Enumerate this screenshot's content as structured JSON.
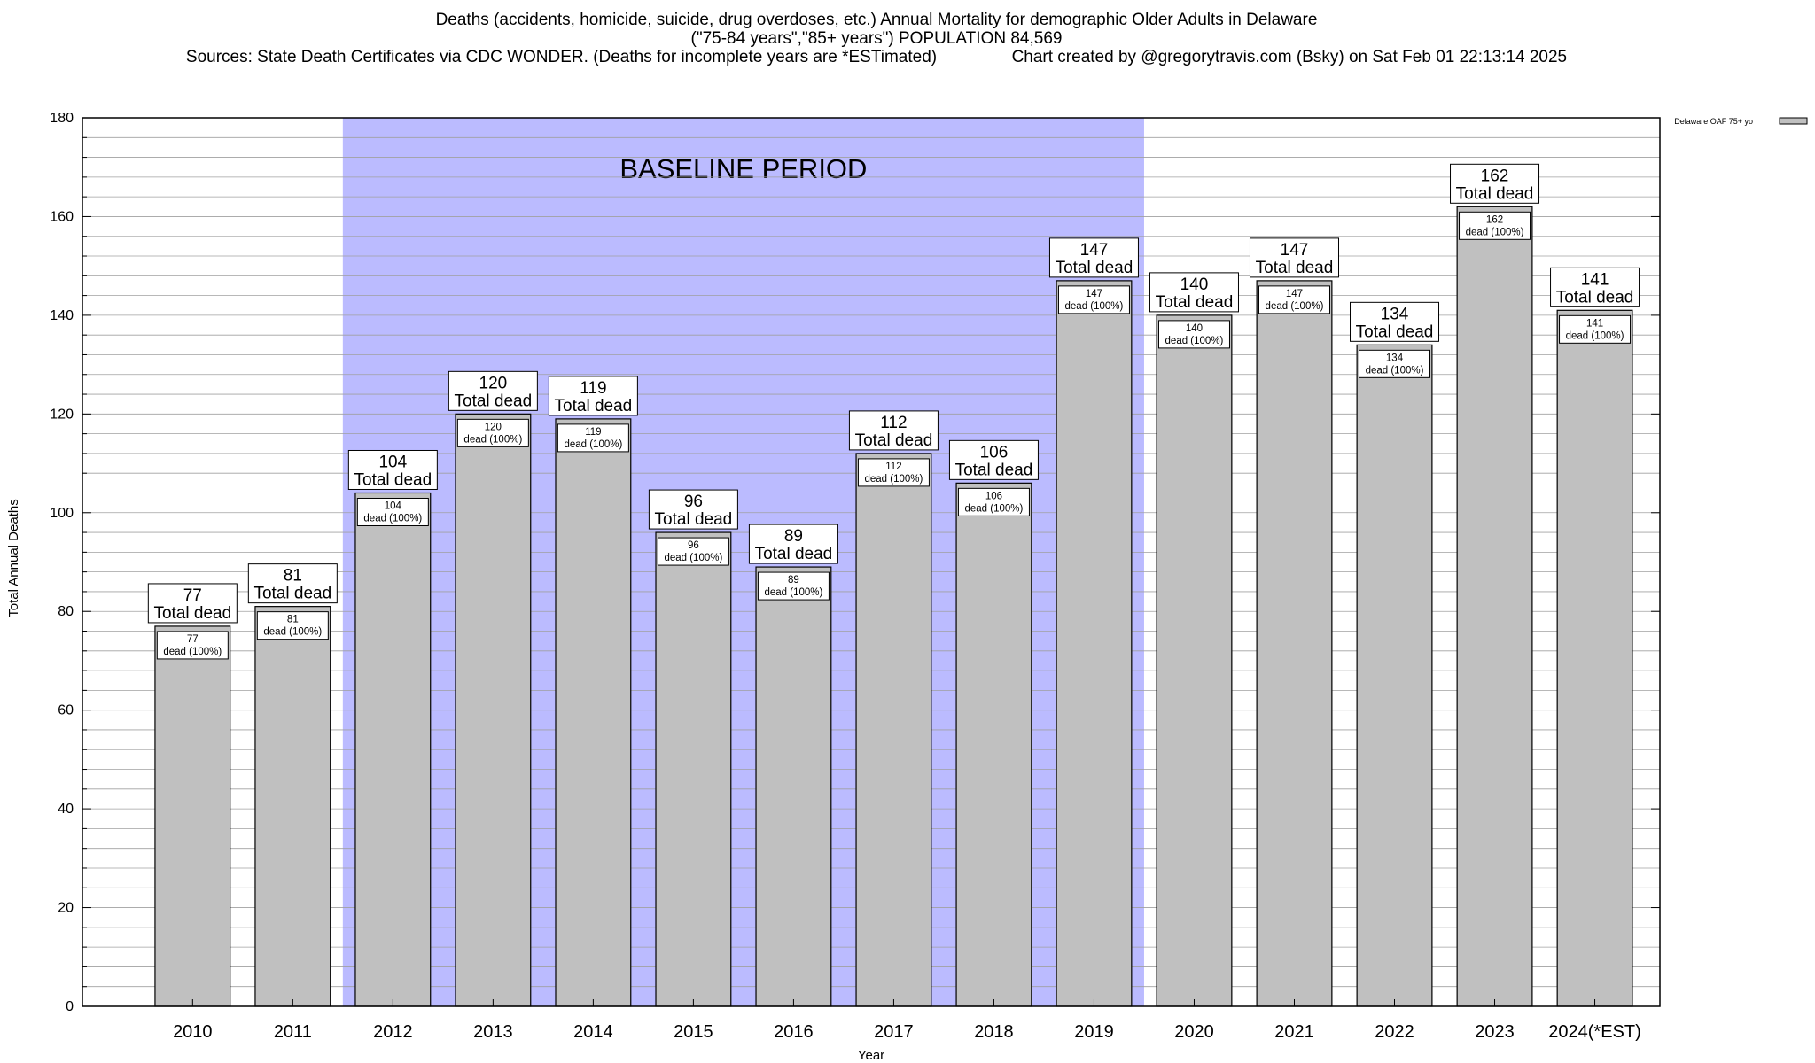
{
  "header": {
    "title_line1": "Deaths (accidents, homicide, suicide, drug overdoses, etc.) Annual Mortality for demographic Older Adults in Delaware",
    "title_line2": "(\"75-84 years\",\"85+ years\") POPULATION 84,569",
    "sources": "Sources: State Death Certificates via CDC WONDER. (Deaths for incomplete years are *ESTimated)",
    "credit": "Chart created by @gregorytravis.com (Bsky) on Sat Feb 01 22:13:14 2025"
  },
  "chart_data": {
    "type": "bar",
    "xlabel": "Year",
    "ylabel": "Total Annual Deaths",
    "ylim": [
      0,
      180
    ],
    "y_ticks": [
      0,
      20,
      40,
      60,
      80,
      100,
      120,
      140,
      160,
      180
    ],
    "y_minor_step": 4,
    "grid": true,
    "legend_position": "top-right",
    "categories": [
      "2010",
      "2011",
      "2012",
      "2013",
      "2014",
      "2015",
      "2016",
      "2017",
      "2018",
      "2019",
      "2020",
      "2021",
      "2022",
      "2023",
      "2024(*EST)"
    ],
    "series": [
      {
        "name": "Delaware OAF 75+ yo",
        "color": "#c0c0c0",
        "values": [
          77,
          81,
          104,
          120,
          119,
          96,
          89,
          112,
          106,
          147,
          140,
          147,
          134,
          162,
          141
        ]
      }
    ],
    "top_label_suffix": "Total dead",
    "inner_label_suffix": "dead (100%)",
    "baseline_period": {
      "label": "BASELINE PERIOD",
      "start": "2012",
      "end": "2019",
      "color": "#bbbbff"
    }
  }
}
